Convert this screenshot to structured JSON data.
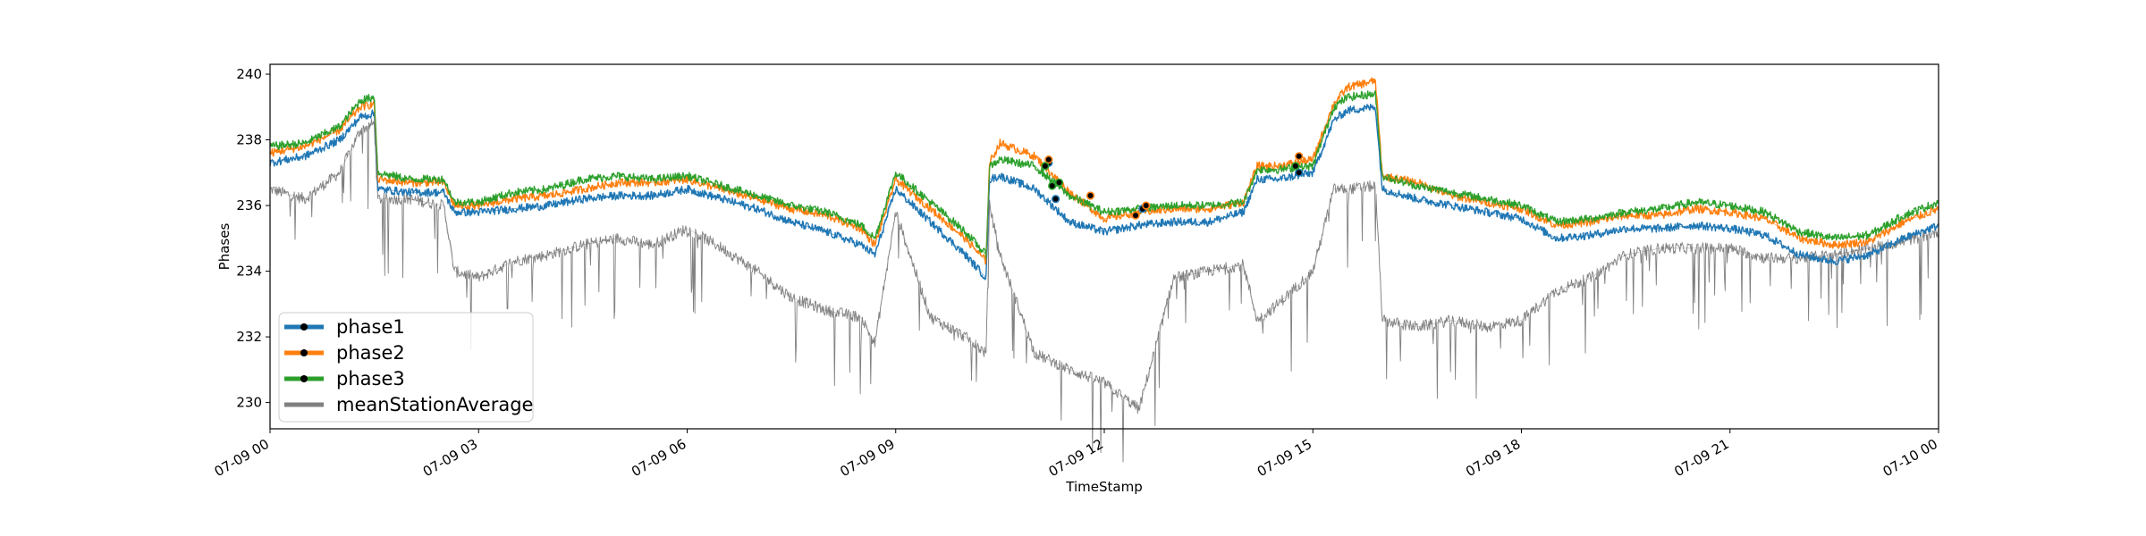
{
  "chart_data": {
    "type": "line",
    "title": "",
    "xlabel": "TimeStamp",
    "ylabel": "Phases",
    "x_ticks": [
      "07-09 00",
      "07-09 03",
      "07-09 06",
      "07-09 09",
      "07-09 12",
      "07-09 15",
      "07-09 18",
      "07-09 21",
      "07-10 00"
    ],
    "x_range_hours": [
      0,
      24
    ],
    "ylim": [
      229.2,
      240.3
    ],
    "y_ticks": [
      230,
      232,
      234,
      236,
      238,
      240
    ],
    "grid": false,
    "legend_position": "lower-left",
    "x_hours": [
      0,
      0.5,
      1,
      1.3,
      1.5,
      1.55,
      2,
      2.5,
      2.65,
      3,
      3.5,
      4,
      4.5,
      5,
      5.5,
      6,
      6.5,
      7,
      7.5,
      8,
      8.5,
      8.7,
      9,
      9.5,
      10,
      10.3,
      10.35,
      10.5,
      11,
      11.5,
      12,
      12.5,
      13,
      13.5,
      14,
      14.2,
      14.5,
      15,
      15.3,
      15.5,
      15.9,
      16,
      16.5,
      17,
      17.5,
      18,
      18.5,
      19,
      19.5,
      20,
      20.5,
      21,
      21.5,
      22,
      22.5,
      23,
      23.5,
      24
    ],
    "series": [
      {
        "name": "phase1",
        "color": "#1f77b4",
        "values": [
          237.3,
          237.5,
          238.0,
          238.7,
          238.8,
          236.5,
          236.4,
          236.4,
          235.8,
          235.8,
          235.9,
          236.0,
          236.2,
          236.3,
          236.3,
          236.5,
          236.2,
          235.9,
          235.5,
          235.2,
          234.8,
          234.5,
          236.5,
          235.5,
          234.5,
          233.8,
          236.8,
          236.9,
          236.5,
          235.5,
          235.2,
          235.4,
          235.5,
          235.5,
          235.8,
          236.8,
          236.8,
          237.0,
          238.6,
          238.9,
          239.0,
          236.5,
          236.2,
          236.0,
          235.8,
          235.6,
          235.0,
          235.1,
          235.3,
          235.3,
          235.4,
          235.3,
          235.1,
          234.5,
          234.3,
          234.5,
          235.0,
          235.4
        ]
      },
      {
        "name": "phase2",
        "color": "#ff7f0e",
        "values": [
          237.6,
          237.8,
          238.3,
          239.0,
          239.1,
          236.8,
          236.7,
          236.7,
          236.0,
          236.0,
          236.2,
          236.3,
          236.5,
          236.7,
          236.7,
          236.8,
          236.5,
          236.2,
          235.9,
          235.7,
          235.3,
          234.8,
          236.8,
          235.9,
          235.0,
          234.3,
          237.3,
          237.9,
          237.5,
          236.4,
          235.6,
          235.8,
          235.9,
          235.9,
          236.1,
          237.2,
          237.2,
          237.4,
          239.1,
          239.6,
          239.8,
          236.9,
          236.7,
          236.3,
          236.1,
          235.9,
          235.4,
          235.5,
          235.7,
          235.7,
          235.9,
          235.8,
          235.6,
          235.0,
          234.8,
          234.9,
          235.5,
          235.9
        ]
      },
      {
        "name": "phase3",
        "color": "#2ca02c",
        "values": [
          237.8,
          237.9,
          238.4,
          239.2,
          239.3,
          237.0,
          236.8,
          236.8,
          236.1,
          236.1,
          236.4,
          236.5,
          236.8,
          236.9,
          236.8,
          236.9,
          236.6,
          236.3,
          236.0,
          235.8,
          235.4,
          235.0,
          237.0,
          236.1,
          235.2,
          234.5,
          237.2,
          237.4,
          237.2,
          236.3,
          235.8,
          235.9,
          236.0,
          236.0,
          236.1,
          237.1,
          237.1,
          237.2,
          239.0,
          239.3,
          239.4,
          236.9,
          236.6,
          236.4,
          236.2,
          236.0,
          235.5,
          235.6,
          235.8,
          235.9,
          236.1,
          236.0,
          235.8,
          235.2,
          235.0,
          235.1,
          235.7,
          236.1
        ]
      },
      {
        "name": "meanStationAverage",
        "color": "#808080",
        "values": [
          236.5,
          236.2,
          237.0,
          238.3,
          238.5,
          236.2,
          236.2,
          236.0,
          234.0,
          233.8,
          234.3,
          234.5,
          234.8,
          235.0,
          234.8,
          235.3,
          234.7,
          234.0,
          233.2,
          232.8,
          232.6,
          231.8,
          235.8,
          232.6,
          232.0,
          231.5,
          236.0,
          234.5,
          231.5,
          231.0,
          230.6,
          229.8,
          233.8,
          234.0,
          234.2,
          232.5,
          233.0,
          234.0,
          236.5,
          236.5,
          236.6,
          232.5,
          232.3,
          232.5,
          232.3,
          232.5,
          233.4,
          233.8,
          234.5,
          234.7,
          234.7,
          234.7,
          234.4,
          234.4,
          234.5,
          234.7,
          234.9,
          235.2
        ]
      }
    ],
    "markers": [
      {
        "series": "phase1",
        "points": [
          [
            11.2,
            237.3
          ],
          [
            11.3,
            236.2
          ],
          [
            12.55,
            235.9
          ],
          [
            14.8,
            237.0
          ]
        ]
      },
      {
        "series": "phase2",
        "points": [
          [
            11.2,
            237.4
          ],
          [
            11.8,
            236.3
          ],
          [
            12.45,
            235.7
          ],
          [
            12.6,
            236.0
          ],
          [
            14.8,
            237.5
          ]
        ]
      },
      {
        "series": "phase3",
        "points": [
          [
            11.15,
            237.2
          ],
          [
            11.25,
            236.6
          ],
          [
            11.35,
            236.7
          ],
          [
            14.75,
            237.2
          ]
        ]
      }
    ]
  }
}
